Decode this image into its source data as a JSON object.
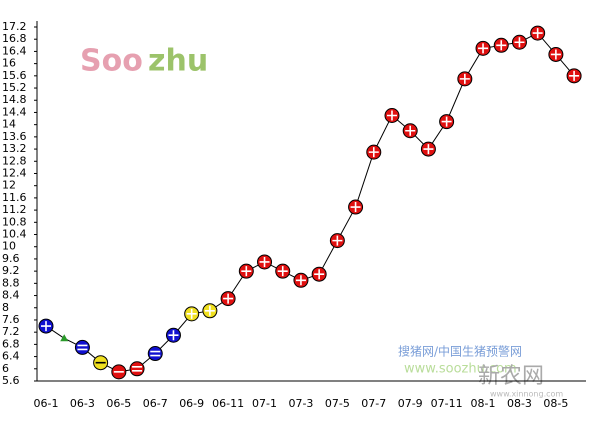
{
  "chart_data": {
    "type": "line",
    "watermarks": [
      "Soo",
      "zhu",
      "搜猪网/中国生猪预警网",
      "www.soozhu.com",
      "新农网",
      "www.xinnong.com"
    ],
    "categories": [
      "06-1",
      null,
      "06-3",
      null,
      "06-5",
      null,
      "06-7",
      null,
      "06-9",
      null,
      "06-11",
      null,
      "07-1",
      null,
      "07-3",
      null,
      "07-5",
      null,
      "07-7",
      null,
      "07-9",
      null,
      "07-11",
      null,
      "08-1",
      null,
      "08-3",
      null,
      "08-5",
      null
    ],
    "values": [
      7.4,
      7.0,
      6.7,
      6.2,
      5.9,
      6.0,
      6.5,
      7.1,
      7.8,
      7.9,
      8.3,
      9.2,
      9.5,
      9.2,
      8.9,
      9.1,
      10.2,
      11.3,
      13.1,
      14.3,
      13.8,
      13.2,
      14.1,
      15.5,
      16.5,
      16.6,
      16.7,
      17.0,
      16.3,
      15.6
    ],
    "point_colors": [
      "#1010d0",
      "#2a9a2a",
      "#1010d0",
      "#f0e020",
      "#e01010",
      "#e01010",
      "#1010d0",
      "#1010d0",
      "#f0e020",
      "#f0e020",
      "#e01010",
      "#e01010",
      "#e01010",
      "#e01010",
      "#e01010",
      "#e01010",
      "#e01010",
      "#e01010",
      "#e01010",
      "#e01010",
      "#e01010",
      "#e01010",
      "#e01010",
      "#e01010",
      "#e01010",
      "#e01010",
      "#e01010",
      "#e01010",
      "#e01010",
      "#e01010"
    ],
    "point_symbols": [
      "plus",
      "triangle",
      "equal",
      "minus",
      "minus",
      "equal",
      "equal",
      "plus",
      "plus",
      "plus",
      "plus",
      "plus",
      "plus",
      "plus",
      "plus",
      "plus",
      "plus",
      "plus",
      "plus",
      "plus",
      "plus",
      "plus",
      "plus",
      "plus",
      "plus",
      "plus",
      "plus",
      "plus",
      "plus",
      "plus"
    ],
    "line_color": "#000000",
    "ylim": [
      5.6,
      17.2
    ],
    "yticks": [
      5.6,
      6,
      6.4,
      6.8,
      7.2,
      7.6,
      8,
      8.4,
      8.8,
      9.2,
      9.6,
      10,
      10.4,
      10.8,
      11.2,
      11.6,
      12,
      12.4,
      12.8,
      13.2,
      13.6,
      14,
      14.4,
      14.8,
      15.2,
      15.6,
      16,
      16.4,
      16.8,
      17.2
    ],
    "grid": false
  }
}
